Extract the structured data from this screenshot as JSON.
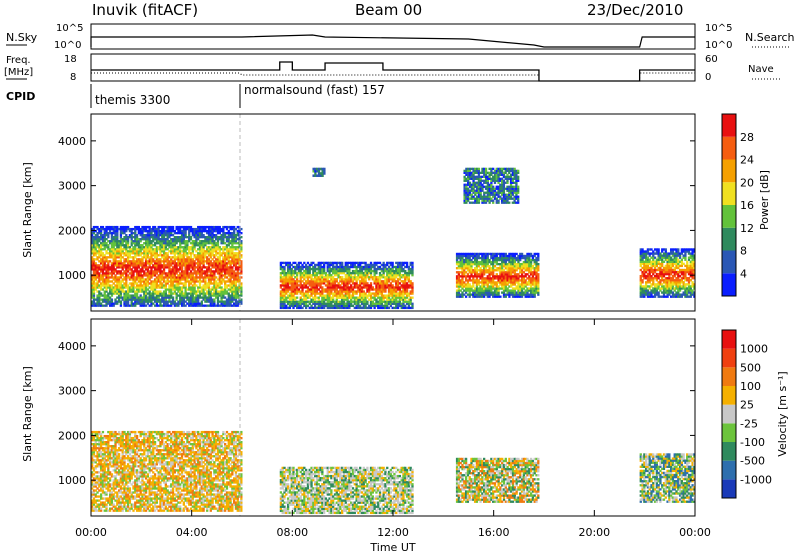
{
  "header": {
    "station": "Inuvik (fitACF)",
    "beam": "Beam 00",
    "date": "23/Dec/2010"
  },
  "panels": {
    "nsky": {
      "left_label": "N.Sky",
      "right_label": "N.Search",
      "left_ticks": [
        "10^5",
        "10^0"
      ],
      "right_ticks": [
        "10^5",
        "10^0"
      ]
    },
    "freq": {
      "left_label_line1": "Freq.",
      "left_label_line2": "[MHz]",
      "right_label": "Nave",
      "left_ticks": [
        "18",
        "8"
      ],
      "right_ticks": [
        "60",
        "0"
      ]
    },
    "cpid": {
      "label": "CPID",
      "segments": [
        {
          "text": "themis 3300"
        },
        {
          "text": "normalsound (fast) 157"
        }
      ]
    }
  },
  "chart_data": [
    {
      "type": "heatmap",
      "name": "power",
      "ylabel": "Slant Range [km]",
      "yticks": [
        "1000",
        "2000",
        "3000",
        "4000"
      ],
      "ylim": [
        200,
        4600
      ],
      "xlim": [
        0,
        24
      ],
      "colorbar": {
        "label": "Power [dB]",
        "ticks": [
          "4",
          "8",
          "12",
          "16",
          "20",
          "24",
          "28"
        ],
        "colors": [
          "#0a1eff",
          "#2a57b5",
          "#2f8a5e",
          "#62c23a",
          "#f0e020",
          "#f5a000",
          "#f55d10",
          "#e81010"
        ]
      },
      "regions": [
        {
          "x": [
            0.0,
            6.0
          ],
          "range": [
            300,
            2100
          ],
          "level": "strong"
        },
        {
          "x": [
            7.5,
            12.8
          ],
          "range": [
            250,
            1300
          ],
          "level": "strong"
        },
        {
          "x": [
            14.5,
            17.8
          ],
          "range": [
            500,
            1500
          ],
          "level": "strong"
        },
        {
          "x": [
            21.8,
            24.0
          ],
          "range": [
            500,
            1600
          ],
          "level": "strong"
        },
        {
          "x": [
            8.8,
            9.3
          ],
          "range": [
            3200,
            3400
          ],
          "level": "weak"
        },
        {
          "x": [
            14.8,
            17.0
          ],
          "range": [
            2600,
            3400
          ],
          "level": "weak"
        }
      ]
    },
    {
      "type": "heatmap",
      "name": "velocity",
      "ylabel": "Slant Range [km]",
      "yticks": [
        "1000",
        "2000",
        "3000",
        "4000"
      ],
      "ylim": [
        200,
        4600
      ],
      "xlim": [
        0,
        24
      ],
      "xlabel": "Time UT",
      "xticks": [
        "00:00",
        "04:00",
        "08:00",
        "12:00",
        "16:00",
        "20:00",
        "00:00"
      ],
      "colorbar": {
        "label": "Velocity [m s⁻¹]",
        "ticks": [
          "1000",
          "500",
          "100",
          "25",
          "-25",
          "-100",
          "-500",
          "-1000"
        ],
        "colors": [
          "#1a3ab8",
          "#2e6fae",
          "#2f8a5e",
          "#6cc43c",
          "#c8c8c8",
          "#f5b000",
          "#f07a10",
          "#f04010",
          "#e81010"
        ]
      },
      "regions": [
        {
          "x": [
            0.0,
            6.0
          ],
          "range": [
            300,
            2100
          ],
          "trend": "toward-orange"
        },
        {
          "x": [
            7.5,
            12.8
          ],
          "range": [
            250,
            1300
          ],
          "trend": "grey-green"
        },
        {
          "x": [
            14.5,
            17.8
          ],
          "range": [
            500,
            1500
          ],
          "trend": "orange-green"
        },
        {
          "x": [
            21.8,
            24.0
          ],
          "range": [
            500,
            1600
          ],
          "trend": "green"
        }
      ]
    }
  ]
}
